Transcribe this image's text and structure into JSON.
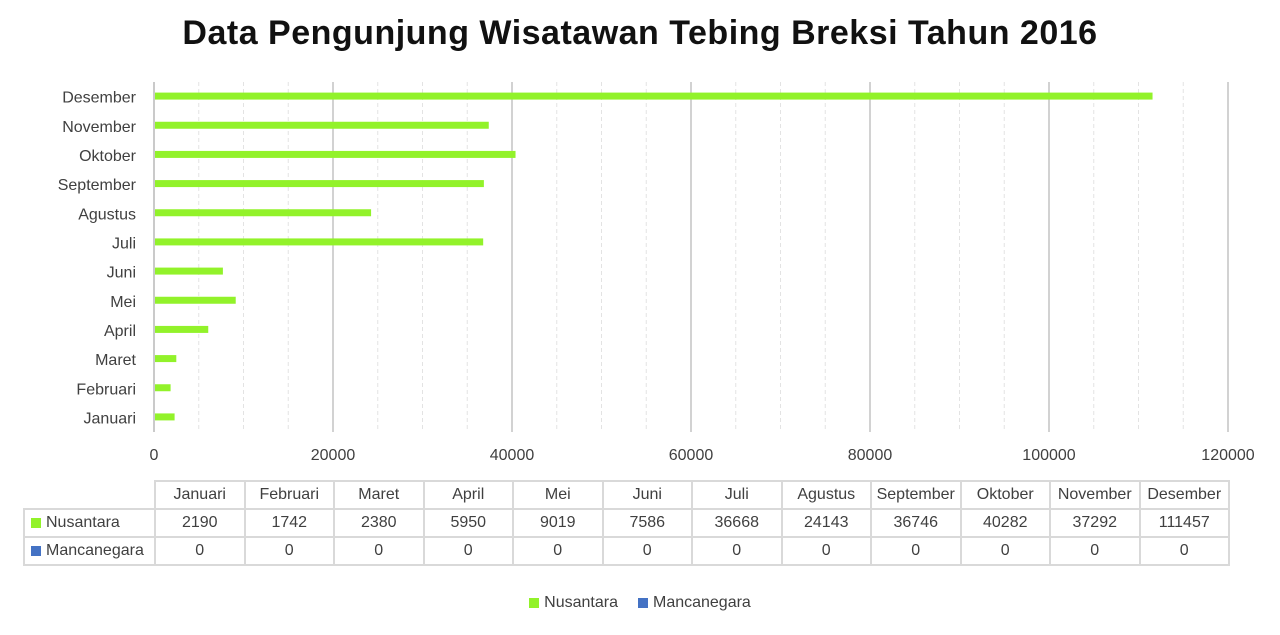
{
  "chart_data": {
    "type": "bar",
    "orientation": "horizontal",
    "title": "Data Pengunjung Wisatawan Tebing Breksi Tahun 2016",
    "categories": [
      "Januari",
      "Februari",
      "Maret",
      "April",
      "Mei",
      "Juni",
      "Juli",
      "Agustus",
      "September",
      "Oktober",
      "November",
      "Desember"
    ],
    "series": [
      {
        "name": "Nusantara",
        "color": "#92f22a",
        "values": [
          2190,
          1742,
          2380,
          5950,
          9019,
          7586,
          36668,
          24143,
          36746,
          40282,
          37292,
          111457
        ]
      },
      {
        "name": "Mancanegara",
        "color": "#4472c4",
        "values": [
          0,
          0,
          0,
          0,
          0,
          0,
          0,
          0,
          0,
          0,
          0,
          0
        ]
      }
    ],
    "xlim": [
      0,
      120000
    ],
    "x_ticks": [
      "0",
      "20000",
      "40000",
      "60000",
      "80000",
      "100000",
      "120000"
    ],
    "grid": true,
    "data_table": true,
    "legend_position": "bottom"
  }
}
